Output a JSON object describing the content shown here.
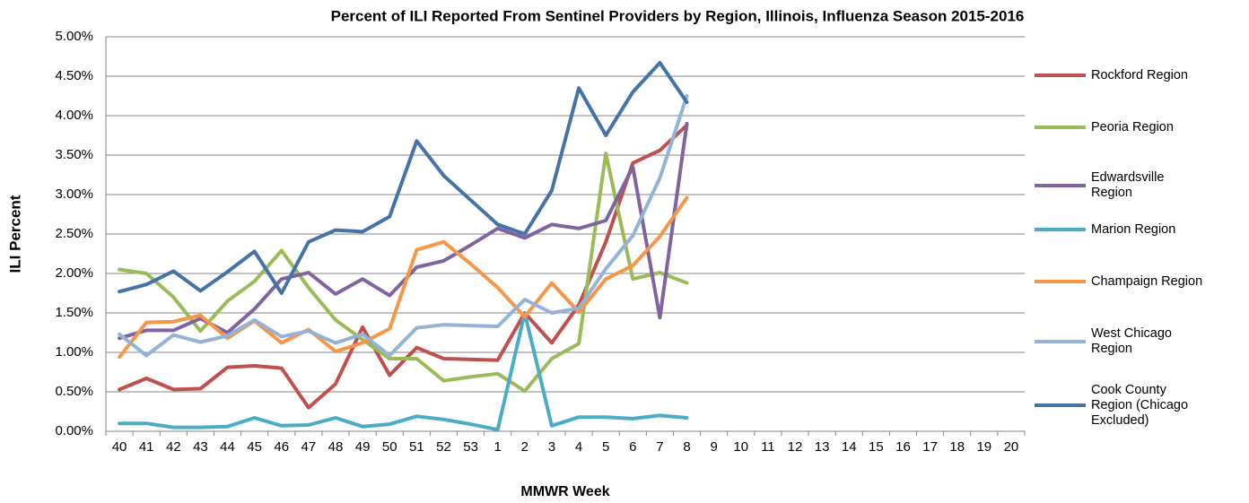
{
  "chart_data": {
    "type": "line",
    "title": "Percent of ILI Reported From Sentinel Providers by Region, Illinois, Influenza Season 2015-2016",
    "x_label": "MMWR Week",
    "y_label": "ILI Percent",
    "categories": [
      "40",
      "41",
      "42",
      "43",
      "44",
      "45",
      "46",
      "47",
      "48",
      "49",
      "50",
      "51",
      "52",
      "53",
      "1",
      "2",
      "3",
      "4",
      "5",
      "6",
      "7",
      "8",
      "9",
      "10",
      "11",
      "12",
      "13",
      "14",
      "15",
      "16",
      "17",
      "18",
      "19",
      "20"
    ],
    "ylim": [
      0,
      5
    ],
    "yticks": [
      {
        "value": 0,
        "label": "0.00%"
      },
      {
        "value": 0.5,
        "label": "0.50%"
      },
      {
        "value": 1,
        "label": "1.00%"
      },
      {
        "value": 1.5,
        "label": "1.50%"
      },
      {
        "value": 2,
        "label": "2.00%"
      },
      {
        "value": 2.5,
        "label": "2.50%"
      },
      {
        "value": 3,
        "label": "3.00%"
      },
      {
        "value": 3.5,
        "label": "3.50%"
      },
      {
        "value": 4,
        "label": "4.00%"
      },
      {
        "value": 4.5,
        "label": "4.50%"
      },
      {
        "value": 5,
        "label": "5.00%"
      }
    ],
    "grid": true,
    "legend": "right",
    "series": [
      {
        "name": "Rockford Region",
        "color": "#c0504d",
        "values": [
          0.53,
          0.67,
          0.53,
          0.54,
          0.81,
          0.83,
          0.8,
          0.3,
          0.6,
          1.32,
          0.71,
          1.06,
          0.92,
          0.91,
          0.9,
          1.5,
          1.12,
          1.6,
          2.4,
          3.4,
          3.56,
          3.88,
          null,
          null,
          null,
          null,
          null,
          null,
          null,
          null,
          null,
          null,
          null,
          null
        ]
      },
      {
        "name": "Peoria Region",
        "color": "#9bbb59",
        "values": [
          2.05,
          2.0,
          1.7,
          1.27,
          1.65,
          1.9,
          2.29,
          1.82,
          1.41,
          1.16,
          0.92,
          0.92,
          0.64,
          0.69,
          0.73,
          0.51,
          0.92,
          1.11,
          3.52,
          1.93,
          2.01,
          1.88,
          null,
          null,
          null,
          null,
          null,
          null,
          null,
          null,
          null,
          null,
          null,
          null
        ]
      },
      {
        "name": "Edwardsville Region",
        "color": "#8064a2",
        "values": [
          1.18,
          1.28,
          1.28,
          1.43,
          1.25,
          1.55,
          1.93,
          2.01,
          1.74,
          1.93,
          1.72,
          2.08,
          2.16,
          2.36,
          2.57,
          2.45,
          2.62,
          2.57,
          2.67,
          3.35,
          1.44,
          3.9,
          null,
          null,
          null,
          null,
          null,
          null,
          null,
          null,
          null,
          null,
          null,
          null
        ]
      },
      {
        "name": "Marion Region",
        "color": "#4bacc6",
        "values": [
          0.1,
          0.1,
          0.05,
          0.05,
          0.06,
          0.17,
          0.07,
          0.08,
          0.17,
          0.06,
          0.09,
          0.19,
          0.15,
          0.09,
          0.02,
          1.5,
          0.07,
          0.18,
          0.18,
          0.16,
          0.2,
          0.17,
          null,
          null,
          null,
          null,
          null,
          null,
          null,
          null,
          null,
          null,
          null,
          null
        ]
      },
      {
        "name": "Champaign Region",
        "color": "#f79646",
        "values": [
          0.94,
          1.38,
          1.39,
          1.47,
          1.18,
          1.4,
          1.12,
          1.29,
          1.01,
          1.12,
          1.3,
          2.3,
          2.4,
          2.12,
          1.82,
          1.45,
          1.88,
          1.51,
          1.93,
          2.1,
          2.47,
          2.96,
          null,
          null,
          null,
          null,
          null,
          null,
          null,
          null,
          null,
          null,
          null,
          null
        ]
      },
      {
        "name": "West Chicago Region",
        "color": "#95b3d7",
        "values": [
          1.23,
          0.96,
          1.22,
          1.13,
          1.21,
          1.41,
          1.2,
          1.27,
          1.12,
          1.23,
          0.96,
          1.31,
          1.35,
          1.34,
          1.33,
          1.67,
          1.5,
          1.56,
          2.06,
          2.48,
          3.21,
          4.25,
          null,
          null,
          null,
          null,
          null,
          null,
          null,
          null,
          null,
          null,
          null,
          null
        ]
      },
      {
        "name": "Cook County Region (Chicago Excluded)",
        "color": "#4572a7",
        "values": [
          1.77,
          1.86,
          2.03,
          1.78,
          2.02,
          2.28,
          1.75,
          2.4,
          2.55,
          2.53,
          2.72,
          3.68,
          3.24,
          2.93,
          2.62,
          2.5,
          3.05,
          4.35,
          3.75,
          4.3,
          4.67,
          4.17,
          null,
          null,
          null,
          null,
          null,
          null,
          null,
          null,
          null,
          null,
          null,
          null
        ]
      }
    ]
  }
}
